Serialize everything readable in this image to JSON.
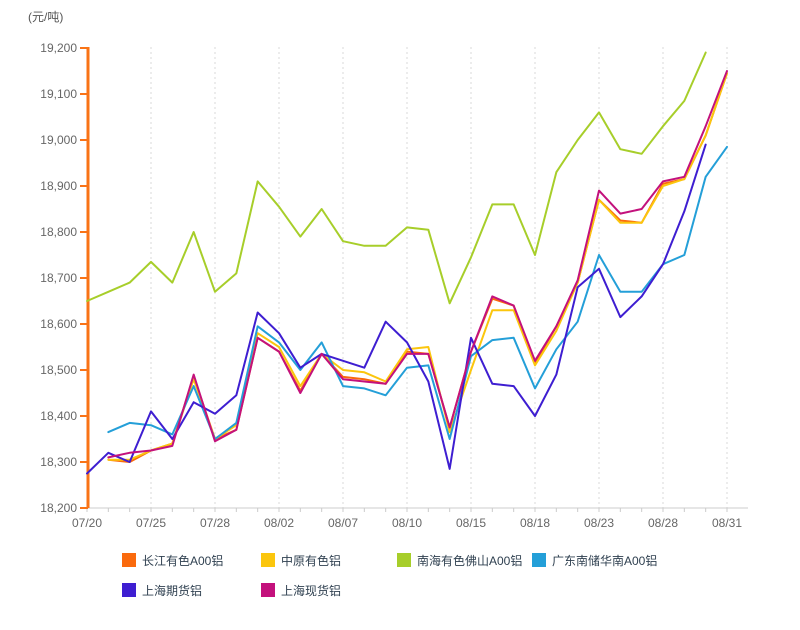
{
  "header": {
    "unit_label": "(元/吨)"
  },
  "chart_data": {
    "type": "line",
    "title": "",
    "ylabel": "元/吨",
    "xlabel": "",
    "ylim": [
      18200,
      19200
    ],
    "grid": "vertical-dotted",
    "legend_position": "bottom",
    "axis_color": "#f97316",
    "x_axis_color": "#cccccc",
    "grid_color": "#d9d9d9",
    "tick_text_color": "#666666",
    "x": [
      "07/20",
      "07/21",
      "07/24",
      "07/25",
      "07/26",
      "07/27",
      "07/28",
      "07/31",
      "08/01",
      "08/02",
      "08/03",
      "08/04",
      "08/07",
      "08/08",
      "08/09",
      "08/10",
      "08/11",
      "08/14",
      "08/15",
      "08/16",
      "08/17",
      "08/18",
      "08/21",
      "08/22",
      "08/23",
      "08/24",
      "08/25",
      "08/28",
      "08/29",
      "08/30",
      "08/31"
    ],
    "xtick_indices": [
      0,
      3,
      6,
      9,
      12,
      15,
      18,
      21,
      24,
      27,
      30
    ],
    "xtick_labels": [
      "07/20",
      "07/25",
      "07/28",
      "08/02",
      "08/07",
      "08/10",
      "08/15",
      "08/18",
      "08/23",
      "08/28",
      "08/31"
    ],
    "ytick_values": [
      19200,
      19100,
      19000,
      18900,
      18800,
      18700,
      18600,
      18500,
      18400,
      18300,
      18200
    ],
    "ytick_labels": [
      "19,200",
      "19,100",
      "19,000",
      "18,900",
      "18,800",
      "18,700",
      "18,600",
      "18,500",
      "18,400",
      "18,300",
      "18,200"
    ],
    "series": [
      {
        "name": "长江有色A00铝",
        "color": "#fa6a0d",
        "values": [
          null,
          18305,
          18300,
          18325,
          18340,
          18485,
          18350,
          18370,
          18570,
          18540,
          18455,
          18535,
          18485,
          18480,
          18470,
          18540,
          18535,
          18375,
          18540,
          18655,
          18640,
          18515,
          18595,
          18690,
          18870,
          18825,
          18820,
          18905,
          18915,
          19010,
          19145
        ]
      },
      {
        "name": "中原有色铝",
        "color": "#fbc60d",
        "values": [
          null,
          18305,
          18305,
          18325,
          18340,
          18480,
          18350,
          18380,
          18580,
          18550,
          18465,
          18535,
          18500,
          18495,
          18475,
          18545,
          18550,
          18365,
          18500,
          18630,
          18630,
          18510,
          18585,
          18690,
          18870,
          18820,
          18820,
          18900,
          18915,
          19010,
          19145
        ]
      },
      {
        "name": "南海有色佛山A00铝",
        "color": "#a7ce2a",
        "values": [
          18650,
          18670,
          18690,
          18735,
          18690,
          18800,
          18670,
          18710,
          18910,
          18855,
          18790,
          18850,
          18780,
          18770,
          18770,
          18810,
          18805,
          18645,
          18745,
          18860,
          18860,
          18750,
          18930,
          19000,
          19060,
          18980,
          18970,
          19030,
          19085,
          19190,
          null
        ]
      },
      {
        "name": "广东南储华南A00铝",
        "color": "#249fd8",
        "values": [
          null,
          18365,
          18385,
          18380,
          18360,
          18465,
          18350,
          18385,
          18595,
          18560,
          18500,
          18560,
          18465,
          18460,
          18445,
          18505,
          18510,
          18350,
          18530,
          18565,
          18570,
          18460,
          18545,
          18605,
          18750,
          18670,
          18670,
          18730,
          18750,
          18920,
          18985
        ]
      },
      {
        "name": "上海期货铝",
        "color": "#3e1ed1",
        "values": [
          18275,
          18320,
          18300,
          18410,
          18350,
          18430,
          18405,
          18445,
          18625,
          18580,
          18505,
          18535,
          18520,
          18505,
          18605,
          18560,
          18475,
          18285,
          18570,
          18470,
          18465,
          18400,
          18490,
          18680,
          18720,
          18615,
          18660,
          18730,
          18845,
          18990,
          null
        ]
      },
      {
        "name": "上海现货铝",
        "color": "#c3117c",
        "values": [
          null,
          18310,
          18320,
          18325,
          18335,
          18490,
          18345,
          18370,
          18570,
          18540,
          18450,
          18535,
          18480,
          18475,
          18470,
          18535,
          18535,
          18375,
          18540,
          18660,
          18640,
          18520,
          18595,
          18695,
          18890,
          18840,
          18850,
          18910,
          18920,
          19030,
          19150
        ]
      }
    ]
  },
  "legend": {
    "items": [
      {
        "label": "长江有色A00铝",
        "color": "#fa6a0d"
      },
      {
        "label": "中原有色铝",
        "color": "#fbc60d"
      },
      {
        "label": "南海有色佛山A00铝",
        "color": "#a7ce2a"
      },
      {
        "label": "广东南储华南A00铝",
        "color": "#249fd8"
      },
      {
        "label": "上海期货铝",
        "color": "#3e1ed1"
      },
      {
        "label": "上海现货铝",
        "color": "#c3117c"
      }
    ]
  }
}
